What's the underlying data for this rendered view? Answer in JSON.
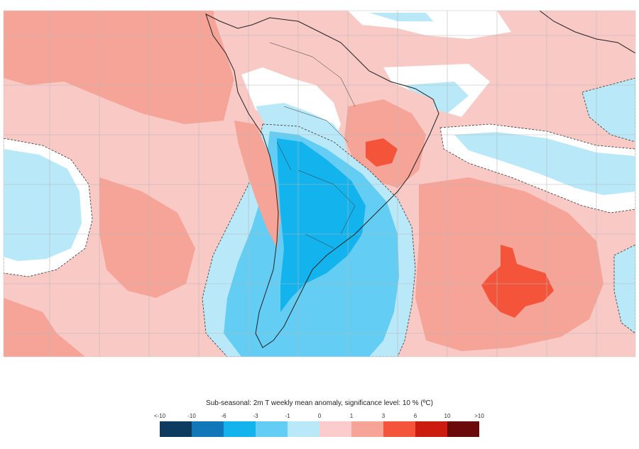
{
  "legend": {
    "title": "Sub-seasonal: 2m T weekly mean anomaly, significance level: 10 % (ºC)",
    "ticks": [
      "<-10",
      "-10",
      "-6",
      "-3",
      "-1",
      "0",
      "1",
      "3",
      "6",
      "10",
      ">10"
    ],
    "bins": [
      {
        "color": "#0d3a5f"
      },
      {
        "color": "#1277b8"
      },
      {
        "color": "#13b3ee"
      },
      {
        "color": "#63cdf3"
      },
      {
        "color": "#b9e9f8"
      },
      {
        "color": "#fccccc"
      },
      {
        "color": "#f5a497"
      },
      {
        "color": "#f4553a"
      },
      {
        "color": "#cc1c0f"
      },
      {
        "color": "#6b0a0a"
      }
    ]
  },
  "map": {
    "palette": {
      "sea_warm": "#f9c9c5",
      "warm": "#f5a497",
      "hot": "#f4553a",
      "cool": "#b9e9f8",
      "cold": "#63cdf3",
      "colder": "#13b3ee",
      "neutral": "#ffffff",
      "grid": "#b8b8b8",
      "coast": "#222222"
    }
  }
}
